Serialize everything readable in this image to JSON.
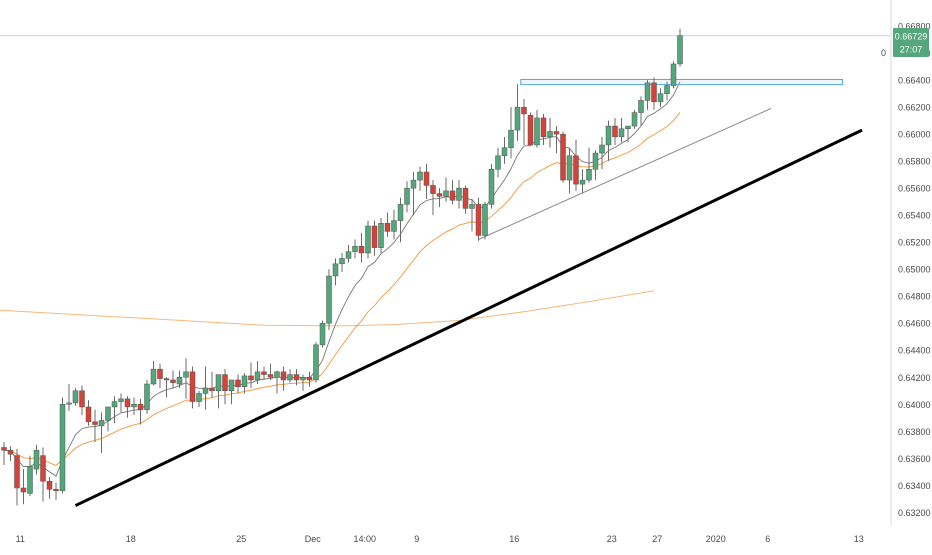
{
  "colors": {
    "bull": "#53a77a",
    "bear": "#d2433a",
    "wick": "#6b6b6b",
    "ema_fast": "#777777",
    "ema_mid": "#f0a04b",
    "ema_slow": "#f5b97a",
    "trend_main": "#000000",
    "trend_minor": "#8c8c8c",
    "resistance_box": "#56a8e0",
    "axis_text": "#4a4a4a",
    "price_badge": "#53a77a",
    "divider": "#d9d9d9"
  },
  "price_label": {
    "price": "0.66729",
    "countdown": "27:07",
    "partial_left": "0"
  },
  "chart_data": {
    "type": "candlestick",
    "title": "",
    "ylim": [
      0.6318,
      0.66875
    ],
    "y_ticks": [
      "0.66800",
      "0.66600",
      "0.66400",
      "0.66200",
      "0.66000",
      "0.65800",
      "0.65600",
      "0.65400",
      "0.65200",
      "0.65000",
      "0.64800",
      "0.64600",
      "0.64400",
      "0.64200",
      "0.64000",
      "0.63800",
      "0.63600",
      "0.63400",
      "0.63200"
    ],
    "x_ticks": [
      {
        "label": "11",
        "bar": 2.5
      },
      {
        "label": "18",
        "bar": 19.5
      },
      {
        "label": "25",
        "bar": 36.5
      },
      {
        "label": "Dec",
        "bar": 47.5
      },
      {
        "label": "14:00",
        "bar": 55.5
      },
      {
        "label": "9",
        "bar": 63.5
      },
      {
        "label": "16",
        "bar": 78.5
      },
      {
        "label": "23",
        "bar": 93.5
      },
      {
        "label": "27",
        "bar": 100.5
      },
      {
        "label": "2020",
        "bar": 109.5
      },
      {
        "label": "6",
        "bar": 117.5
      },
      {
        "label": "13",
        "bar": 131.5
      }
    ],
    "bar_count_span": 132,
    "candles": [
      [
        0.6368,
        0.6372,
        0.6355,
        0.6366
      ],
      [
        0.6366,
        0.6369,
        0.6358,
        0.6363
      ],
      [
        0.6362,
        0.6367,
        0.6325,
        0.6338
      ],
      [
        0.6338,
        0.6352,
        0.6326,
        0.6335
      ],
      [
        0.6334,
        0.6362,
        0.6332,
        0.6354
      ],
      [
        0.6352,
        0.637,
        0.6348,
        0.6366
      ],
      [
        0.6362,
        0.6368,
        0.6328,
        0.6343
      ],
      [
        0.6343,
        0.6346,
        0.633,
        0.6337
      ],
      [
        0.6337,
        0.6342,
        0.6329,
        0.6336
      ],
      [
        0.6336,
        0.6405,
        0.6334,
        0.64
      ],
      [
        0.64,
        0.6415,
        0.6395,
        0.6401
      ],
      [
        0.6401,
        0.6412,
        0.6399,
        0.641
      ],
      [
        0.641,
        0.6414,
        0.6392,
        0.6398
      ],
      [
        0.6398,
        0.6403,
        0.6384,
        0.6387
      ],
      [
        0.6387,
        0.6396,
        0.6372,
        0.6385
      ],
      [
        0.6384,
        0.6394,
        0.6364,
        0.6388
      ],
      [
        0.6388,
        0.6398,
        0.638,
        0.6398
      ],
      [
        0.6398,
        0.6406,
        0.6386,
        0.6402
      ],
      [
        0.6402,
        0.6408,
        0.6394,
        0.6404
      ],
      [
        0.6404,
        0.6406,
        0.639,
        0.6398
      ],
      [
        0.6398,
        0.6405,
        0.6392,
        0.64
      ],
      [
        0.64,
        0.6404,
        0.6385,
        0.6396
      ],
      [
        0.6396,
        0.6418,
        0.6393,
        0.6415
      ],
      [
        0.6415,
        0.6432,
        0.6414,
        0.6426
      ],
      [
        0.6426,
        0.643,
        0.6412,
        0.6419
      ],
      [
        0.6419,
        0.642,
        0.6405,
        0.6418
      ],
      [
        0.6418,
        0.6425,
        0.6412,
        0.6416
      ],
      [
        0.6415,
        0.6425,
        0.6412,
        0.642
      ],
      [
        0.642,
        0.6434,
        0.6404,
        0.6424
      ],
      [
        0.6424,
        0.6428,
        0.6397,
        0.6402
      ],
      [
        0.6402,
        0.641,
        0.6398,
        0.6408
      ],
      [
        0.6408,
        0.6428,
        0.6396,
        0.6412
      ],
      [
        0.6412,
        0.6424,
        0.6405,
        0.641
      ],
      [
        0.641,
        0.642,
        0.6397,
        0.6422
      ],
      [
        0.6422,
        0.6426,
        0.64,
        0.641
      ],
      [
        0.641,
        0.6418,
        0.64,
        0.6418
      ],
      [
        0.6418,
        0.6422,
        0.6408,
        0.6413
      ],
      [
        0.6413,
        0.6423,
        0.6408,
        0.6421
      ],
      [
        0.6421,
        0.6431,
        0.6412,
        0.6418
      ],
      [
        0.6418,
        0.6432,
        0.6415,
        0.6424
      ],
      [
        0.6424,
        0.6428,
        0.6418,
        0.6422
      ],
      [
        0.6422,
        0.643,
        0.6418,
        0.642
      ],
      [
        0.642,
        0.6425,
        0.6408,
        0.6424
      ],
      [
        0.6424,
        0.6428,
        0.641,
        0.6418
      ],
      [
        0.6418,
        0.6426,
        0.6416,
        0.6422
      ],
      [
        0.6422,
        0.6426,
        0.6414,
        0.6418
      ],
      [
        0.6418,
        0.6422,
        0.641,
        0.642
      ],
      [
        0.642,
        0.6424,
        0.6413,
        0.6418
      ],
      [
        0.6418,
        0.6446,
        0.6416,
        0.6444
      ],
      [
        0.6444,
        0.6462,
        0.6442,
        0.646
      ],
      [
        0.646,
        0.65,
        0.6455,
        0.6495
      ],
      [
        0.6495,
        0.6508,
        0.6488,
        0.6504
      ],
      [
        0.6504,
        0.6512,
        0.6498,
        0.6508
      ],
      [
        0.6508,
        0.6518,
        0.6505,
        0.6513
      ],
      [
        0.6513,
        0.6522,
        0.6508,
        0.6517
      ],
      [
        0.6517,
        0.6527,
        0.6505,
        0.6512
      ],
      [
        0.6512,
        0.6536,
        0.6508,
        0.6532
      ],
      [
        0.6532,
        0.6536,
        0.651,
        0.6516
      ],
      [
        0.6516,
        0.6538,
        0.6512,
        0.6534
      ],
      [
        0.6534,
        0.6542,
        0.6524,
        0.6528
      ],
      [
        0.6528,
        0.6544,
        0.6522,
        0.6536
      ],
      [
        0.6536,
        0.6553,
        0.652,
        0.6548
      ],
      [
        0.6548,
        0.6565,
        0.6542,
        0.656
      ],
      [
        0.656,
        0.6572,
        0.654,
        0.6566
      ],
      [
        0.6566,
        0.6576,
        0.6558,
        0.6572
      ],
      [
        0.6572,
        0.6578,
        0.6552,
        0.6562
      ],
      [
        0.6562,
        0.6566,
        0.654,
        0.6556
      ],
      [
        0.6556,
        0.656,
        0.6546,
        0.6554
      ],
      [
        0.6554,
        0.6568,
        0.655,
        0.6558
      ],
      [
        0.6558,
        0.6566,
        0.6548,
        0.6551
      ],
      [
        0.6551,
        0.6566,
        0.6545,
        0.656
      ],
      [
        0.656,
        0.6562,
        0.6541,
        0.6545
      ],
      [
        0.6545,
        0.6552,
        0.6528,
        0.6548
      ],
      [
        0.6548,
        0.6553,
        0.6521,
        0.6525
      ],
      [
        0.6525,
        0.655,
        0.6522,
        0.6548
      ],
      [
        0.6548,
        0.6578,
        0.6545,
        0.6574
      ],
      [
        0.6574,
        0.659,
        0.6568,
        0.6584
      ],
      [
        0.6584,
        0.6598,
        0.6578,
        0.659
      ],
      [
        0.659,
        0.662,
        0.6582,
        0.6603
      ],
      [
        0.6603,
        0.6637,
        0.6595,
        0.662
      ],
      [
        0.662,
        0.6626,
        0.6592,
        0.6615
      ],
      [
        0.6614,
        0.6616,
        0.6594,
        0.6592
      ],
      [
        0.6592,
        0.6618,
        0.659,
        0.6612
      ],
      [
        0.6612,
        0.6615,
        0.6592,
        0.6598
      ],
      [
        0.6598,
        0.6612,
        0.659,
        0.6602
      ],
      [
        0.6602,
        0.6606,
        0.6586,
        0.66
      ],
      [
        0.66,
        0.6602,
        0.6564,
        0.6566
      ],
      [
        0.6566,
        0.659,
        0.6556,
        0.6584
      ],
      [
        0.6584,
        0.6596,
        0.6558,
        0.6563
      ],
      [
        0.6563,
        0.6574,
        0.6556,
        0.6566
      ],
      [
        0.6566,
        0.659,
        0.6564,
        0.6574
      ],
      [
        0.6574,
        0.6588,
        0.6566,
        0.6586
      ],
      [
        0.6586,
        0.6598,
        0.6574,
        0.6592
      ],
      [
        0.6592,
        0.661,
        0.658,
        0.6606
      ],
      [
        0.6606,
        0.6612,
        0.6592,
        0.6598
      ],
      [
        0.6598,
        0.6612,
        0.6594,
        0.6604
      ],
      [
        0.6604,
        0.6606,
        0.6594,
        0.6606
      ],
      [
        0.6606,
        0.6618,
        0.6604,
        0.6616
      ],
      [
        0.6616,
        0.6628,
        0.6606,
        0.6625
      ],
      [
        0.6625,
        0.664,
        0.6618,
        0.6638
      ],
      [
        0.6638,
        0.6642,
        0.6618,
        0.6624
      ],
      [
        0.6624,
        0.6634,
        0.662,
        0.663
      ],
      [
        0.663,
        0.6639,
        0.6625,
        0.6636
      ],
      [
        0.6636,
        0.6654,
        0.6634,
        0.6652
      ],
      [
        0.6652,
        0.6678,
        0.665,
        0.6673
      ]
    ],
    "ema_slow_points": [
      [
        -2,
        0.647
      ],
      [
        20,
        0.6464
      ],
      [
        40,
        0.64585
      ],
      [
        52,
        0.6458
      ],
      [
        60,
        0.6459
      ],
      [
        70,
        0.6462
      ],
      [
        80,
        0.64685
      ],
      [
        90,
        0.6476
      ],
      [
        100,
        0.6484
      ]
    ],
    "trendline_main": [
      [
        11,
        0.6325
      ],
      [
        132,
        0.6603
      ]
    ],
    "trendline_minor": [
      [
        73,
        0.6522
      ],
      [
        118,
        0.6619
      ]
    ],
    "resistance_zone": {
      "bar_start": 79.5,
      "bar_end": 129,
      "y_top": 0.66405,
      "y_bottom": 0.66367
    },
    "current_price": 0.66729
  }
}
